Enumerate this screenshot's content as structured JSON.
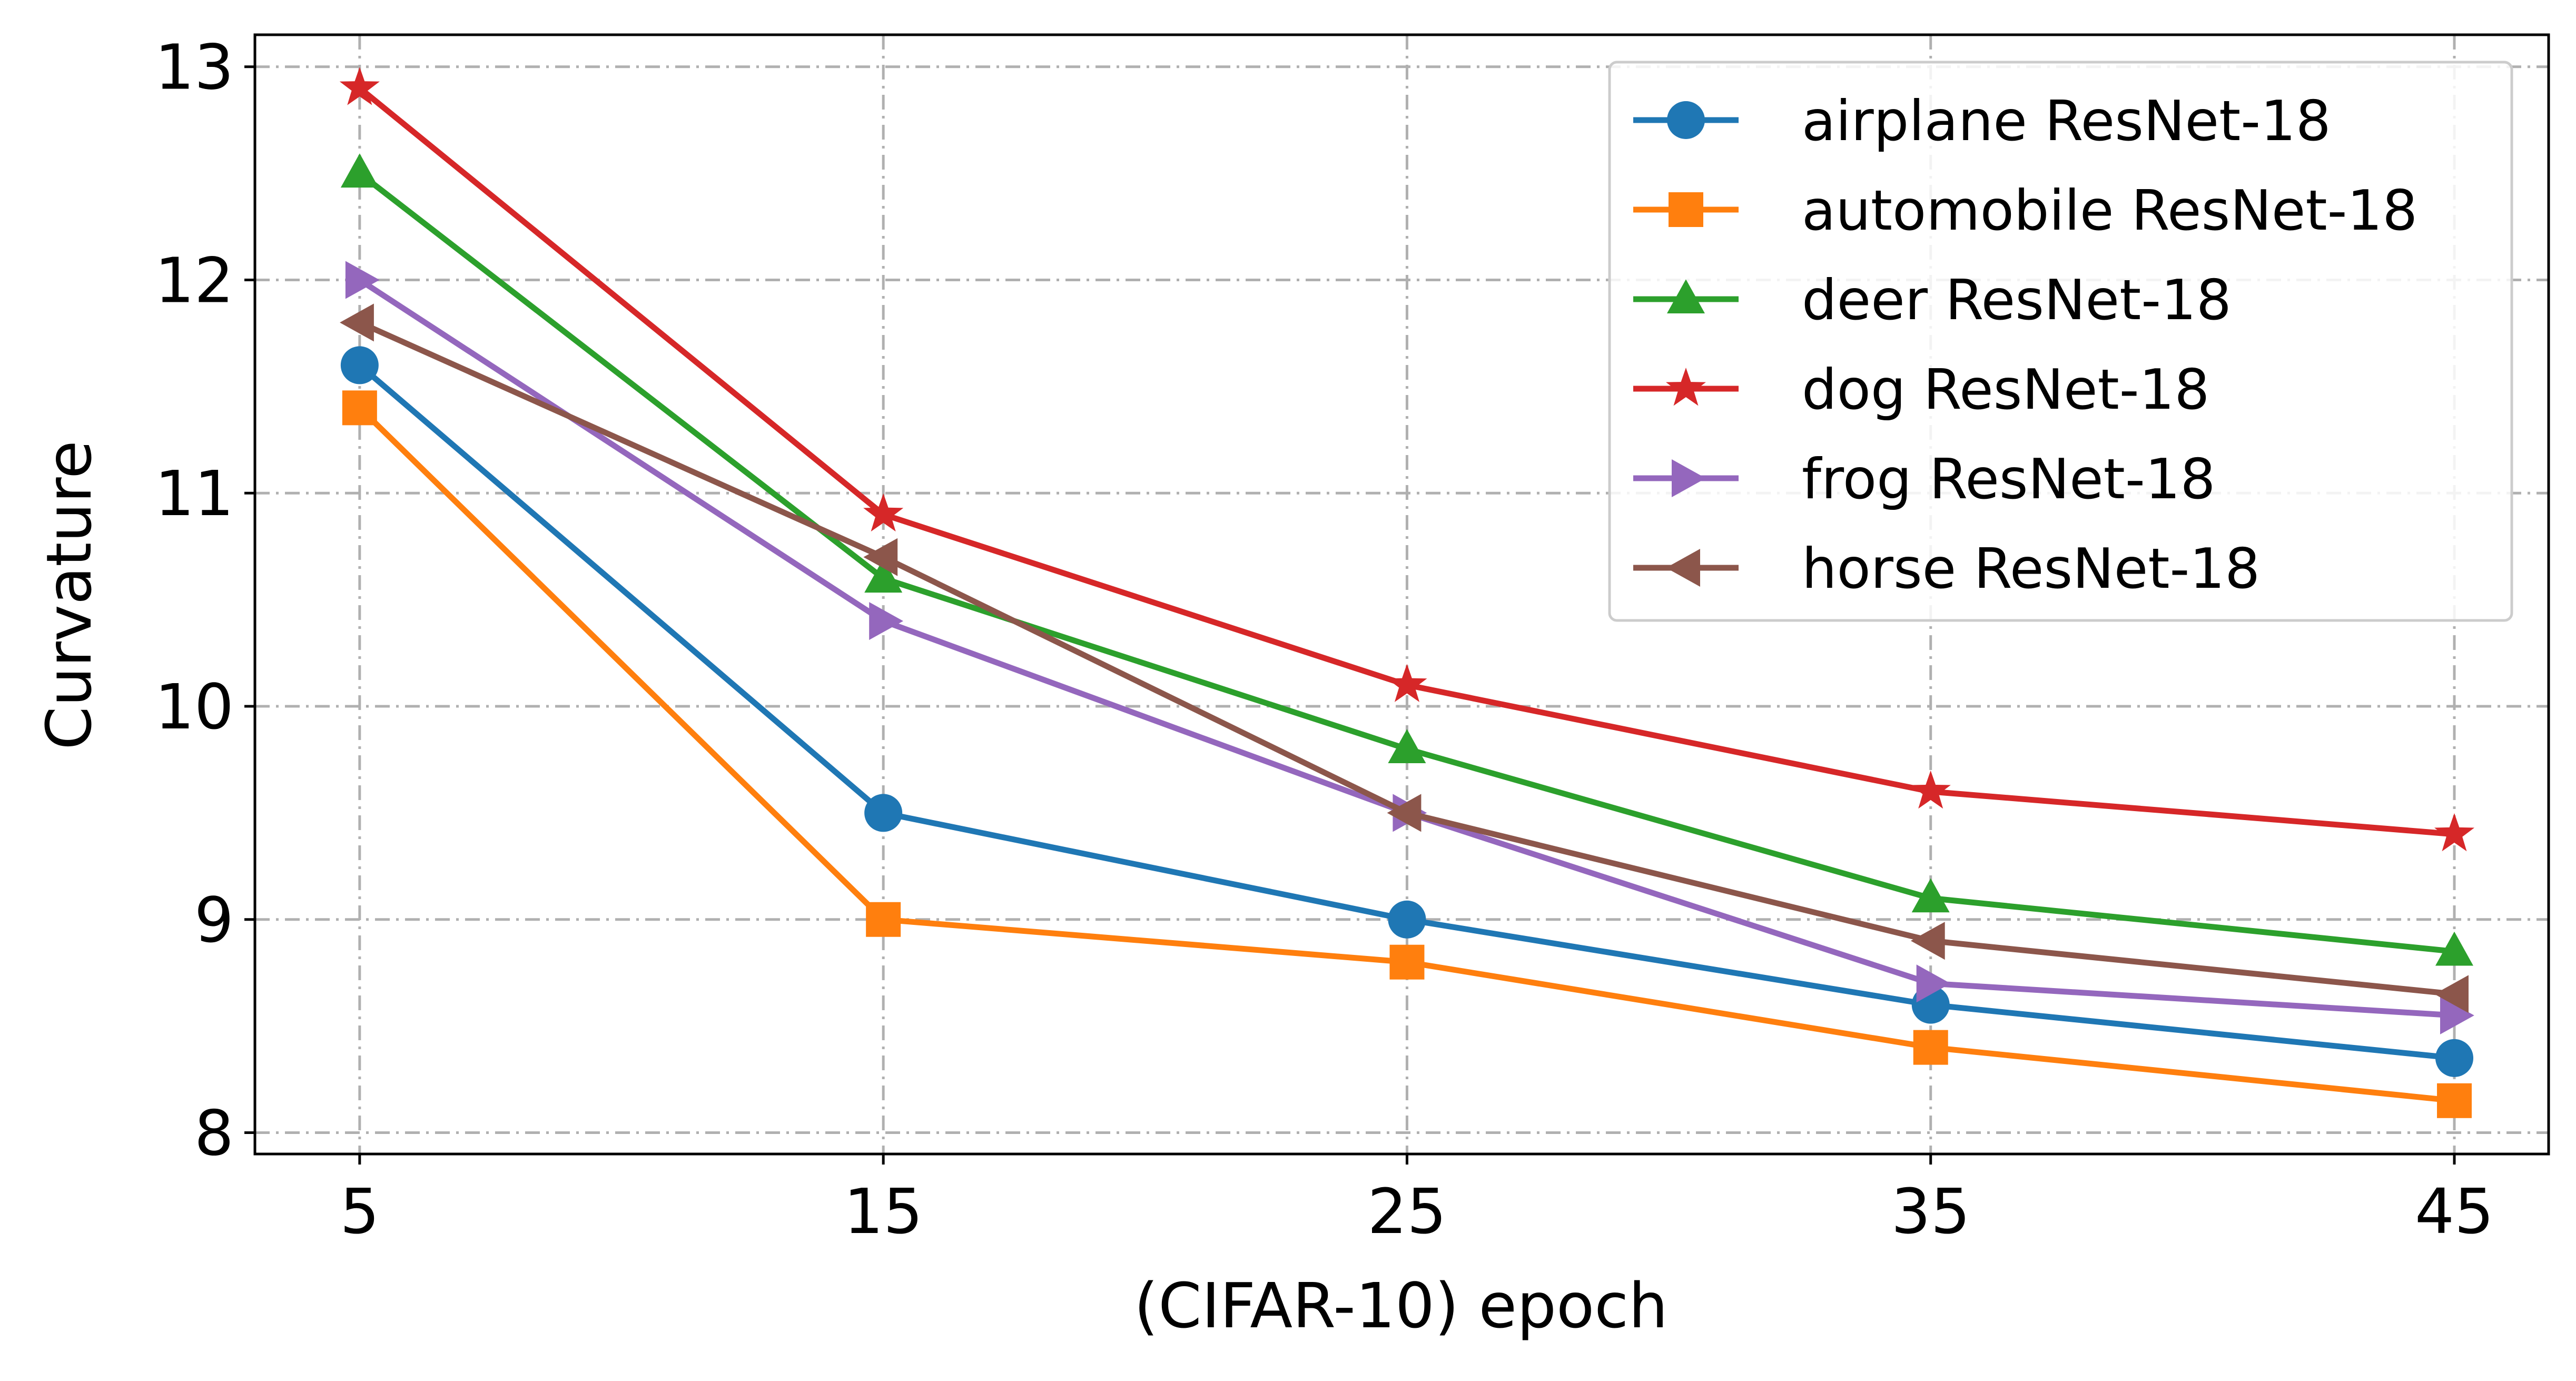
{
  "chart_data": {
    "type": "line",
    "title": "",
    "xlabel": "(CIFAR-10) epoch",
    "ylabel": "Curvature",
    "x": [
      5,
      15,
      25,
      35,
      45
    ],
    "xlim": [
      3,
      46.8
    ],
    "ylim": [
      7.9,
      13.15
    ],
    "xticks": [
      5,
      15,
      25,
      35,
      45
    ],
    "xtick_labels": [
      "5",
      "15",
      "25",
      "35",
      "45"
    ],
    "yticks": [
      8,
      9,
      10,
      11,
      12,
      13
    ],
    "ytick_labels": [
      "8",
      "9",
      "10",
      "11",
      "12",
      "13"
    ],
    "grid": true,
    "legend_position": "top-right",
    "series": [
      {
        "name": "airplane ResNet-18",
        "color": "#1f77b4",
        "marker": "circle",
        "values": [
          11.6,
          9.5,
          9.0,
          8.6,
          8.35
        ]
      },
      {
        "name": "automobile ResNet-18",
        "color": "#ff7f0e",
        "marker": "square",
        "values": [
          11.4,
          9.0,
          8.8,
          8.4,
          8.15
        ]
      },
      {
        "name": "deer ResNet-18",
        "color": "#2ca02c",
        "marker": "triangle-up",
        "values": [
          12.5,
          10.6,
          9.8,
          9.1,
          8.85
        ]
      },
      {
        "name": "dog ResNet-18",
        "color": "#d62728",
        "marker": "star",
        "values": [
          12.9,
          10.9,
          10.1,
          9.6,
          9.4
        ]
      },
      {
        "name": "frog ResNet-18",
        "color": "#9467bd",
        "marker": "triangle-right",
        "values": [
          12.0,
          10.4,
          9.5,
          8.7,
          8.55
        ]
      },
      {
        "name": "horse ResNet-18",
        "color": "#8c564b",
        "marker": "triangle-left",
        "values": [
          11.8,
          10.7,
          9.5,
          8.9,
          8.65
        ]
      }
    ]
  }
}
